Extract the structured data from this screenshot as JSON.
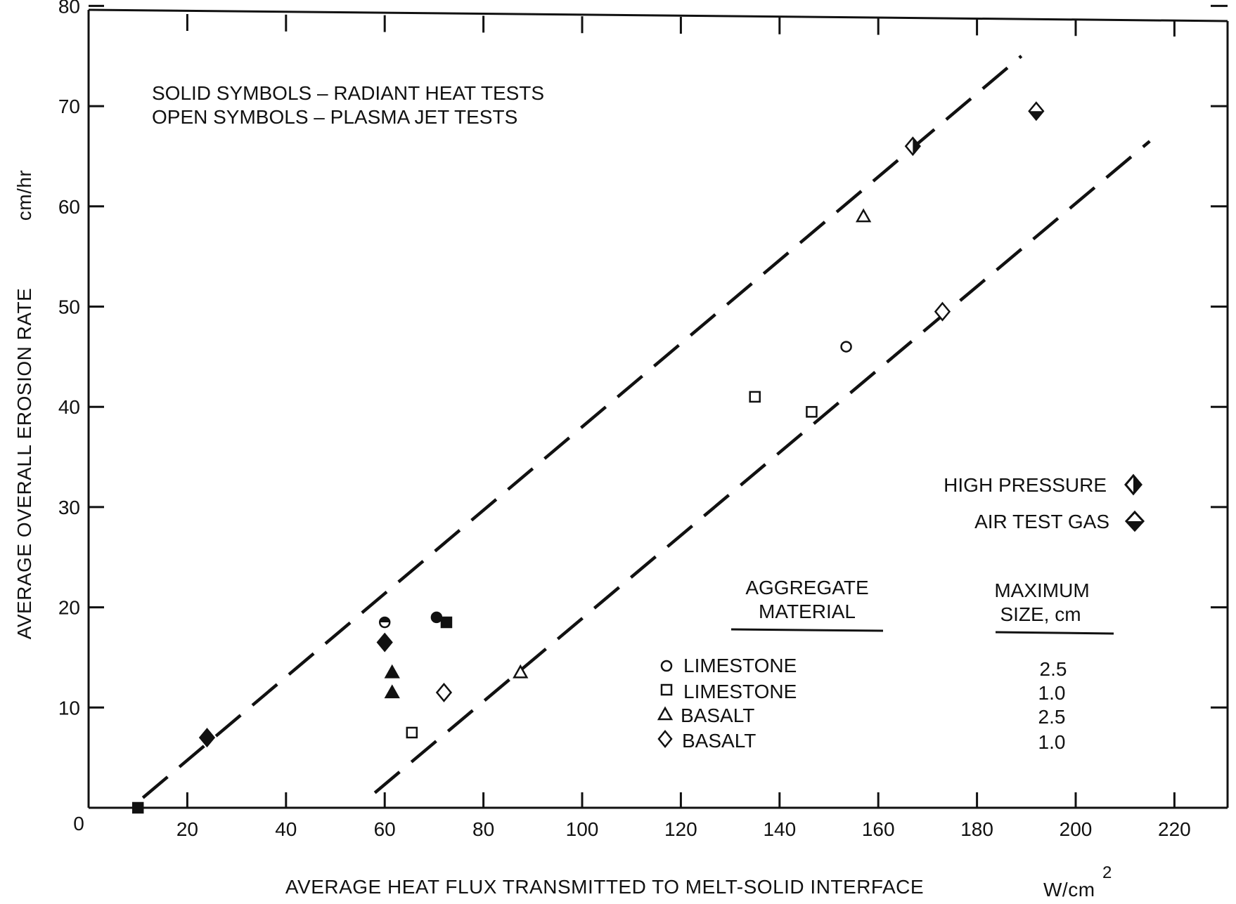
{
  "chart_data": {
    "type": "scatter",
    "title": "",
    "xlabel": "AVERAGE HEAT FLUX TRANSMITTED TO MELT-SOLID INTERFACE",
    "xunit": "W/cm",
    "xunit_exp": "2",
    "ylabel": "AVERAGE OVERALL EROSION RATE",
    "yunit": "cm/hr",
    "xlim": [
      0,
      230
    ],
    "ylim": [
      0,
      80
    ],
    "x_ticks": [
      20,
      40,
      60,
      80,
      100,
      120,
      140,
      160,
      180,
      200,
      220
    ],
    "y_ticks": [
      10,
      20,
      30,
      40,
      50,
      60,
      70,
      80
    ],
    "origin_label": "0",
    "grid": false,
    "notes": [
      "SOLID SYMBOLS – RADIANT HEAT TESTS",
      "OPEN SYMBOLS – PLASMA JET TESTS"
    ],
    "special_legend": [
      {
        "label": "HIGH PRESSURE",
        "symbol": "diamond-half-vertical"
      },
      {
        "label": "AIR TEST GAS",
        "symbol": "diamond-half-horizontal"
      }
    ],
    "legend": {
      "header_material": [
        "AGGREGATE",
        "MATERIAL"
      ],
      "header_size": [
        "MAXIMUM",
        "SIZE, cm"
      ],
      "rows": [
        {
          "symbol": "circle",
          "material": "LIMESTONE",
          "size": "2.5"
        },
        {
          "symbol": "square",
          "material": "LIMESTONE",
          "size": "1.0"
        },
        {
          "symbol": "triangle",
          "material": "BASALT",
          "size": "2.5"
        },
        {
          "symbol": "diamond",
          "material": "BASALT",
          "size": "1.0"
        }
      ]
    },
    "lines": [
      {
        "x": [
          11,
          189
        ],
        "y": [
          1,
          75
        ],
        "style": "dashed"
      },
      {
        "x": [
          58,
          215
        ],
        "y": [
          1.5,
          66.5
        ],
        "style": "dashed"
      }
    ],
    "points": [
      {
        "x": 10,
        "y": 0,
        "symbol": "square",
        "fill": "solid"
      },
      {
        "x": 24,
        "y": 7,
        "symbol": "diamond",
        "fill": "solid"
      },
      {
        "x": 60,
        "y": 18.5,
        "symbol": "circle",
        "fill": "half"
      },
      {
        "x": 60,
        "y": 16.5,
        "symbol": "diamond",
        "fill": "solid"
      },
      {
        "x": 61.5,
        "y": 13.5,
        "symbol": "triangle",
        "fill": "solid"
      },
      {
        "x": 61.5,
        "y": 11.5,
        "symbol": "triangle",
        "fill": "solid"
      },
      {
        "x": 70.5,
        "y": 19,
        "symbol": "circle",
        "fill": "solid"
      },
      {
        "x": 72.5,
        "y": 18.5,
        "symbol": "square",
        "fill": "solid"
      },
      {
        "x": 65.5,
        "y": 7.5,
        "symbol": "square",
        "fill": "open"
      },
      {
        "x": 72,
        "y": 11.5,
        "symbol": "diamond",
        "fill": "open"
      },
      {
        "x": 87.5,
        "y": 13.5,
        "symbol": "triangle",
        "fill": "open"
      },
      {
        "x": 135,
        "y": 41,
        "symbol": "square",
        "fill": "open"
      },
      {
        "x": 146.5,
        "y": 39.5,
        "symbol": "square",
        "fill": "open"
      },
      {
        "x": 153.5,
        "y": 46,
        "symbol": "circle",
        "fill": "open"
      },
      {
        "x": 157,
        "y": 59,
        "symbol": "triangle",
        "fill": "open"
      },
      {
        "x": 167,
        "y": 66,
        "symbol": "diamond",
        "fill": "half-vertical"
      },
      {
        "x": 173,
        "y": 49.5,
        "symbol": "diamond",
        "fill": "open"
      },
      {
        "x": 192,
        "y": 69.5,
        "symbol": "diamond",
        "fill": "half-horizontal"
      }
    ]
  }
}
